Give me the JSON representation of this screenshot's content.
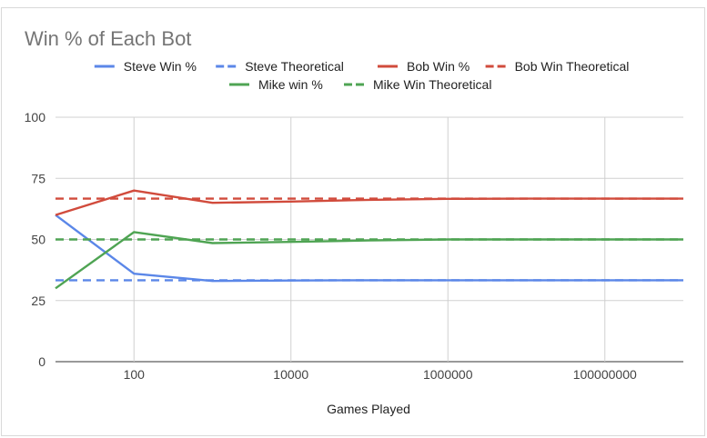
{
  "chart_data": {
    "type": "line",
    "title": "Win % of Each Bot",
    "xlabel": "Games Played",
    "ylabel": "",
    "x_scale": "log",
    "x": [
      10,
      100,
      1000,
      10000,
      100000,
      1000000,
      10000000,
      100000000,
      1000000000
    ],
    "x_tick_labels": [
      "100",
      "10000",
      "1000000",
      "100000000"
    ],
    "x_ticks": [
      100,
      10000,
      1000000,
      100000000
    ],
    "xlim": [
      10,
      1000000000
    ],
    "ylim": [
      0,
      100
    ],
    "y_ticks": [
      0,
      25,
      50,
      75,
      100
    ],
    "y_tick_labels": [
      "0",
      "25",
      "50",
      "75",
      "100"
    ],
    "grid": true,
    "legend_position": "top",
    "series": [
      {
        "name": "Steve Win %",
        "color": "#5b87e8",
        "dashed": false,
        "values": [
          60,
          36,
          33,
          33.2,
          33.3,
          33.3,
          33.3,
          33.3,
          33.3
        ]
      },
      {
        "name": "Steve Theoretical",
        "color": "#5b87e8",
        "dashed": true,
        "values": [
          33.3,
          33.3,
          33.3,
          33.3,
          33.3,
          33.3,
          33.3,
          33.3,
          33.3
        ]
      },
      {
        "name": "Bob Win %",
        "color": "#d14b3c",
        "dashed": false,
        "values": [
          60,
          70,
          65,
          65.5,
          66.2,
          66.6,
          66.7,
          66.7,
          66.7
        ]
      },
      {
        "name": "Bob Win Theoretical",
        "color": "#d14b3c",
        "dashed": true,
        "values": [
          66.7,
          66.7,
          66.7,
          66.7,
          66.7,
          66.7,
          66.7,
          66.7,
          66.7
        ]
      },
      {
        "name": "Mike win %",
        "color": "#4fa453",
        "dashed": false,
        "values": [
          30,
          53,
          48.5,
          49,
          49.6,
          50,
          50,
          50,
          50
        ]
      },
      {
        "name": "Mike Win Theoretical",
        "color": "#4fa453",
        "dashed": true,
        "values": [
          50,
          50,
          50,
          50,
          50,
          50,
          50,
          50,
          50
        ]
      }
    ]
  }
}
